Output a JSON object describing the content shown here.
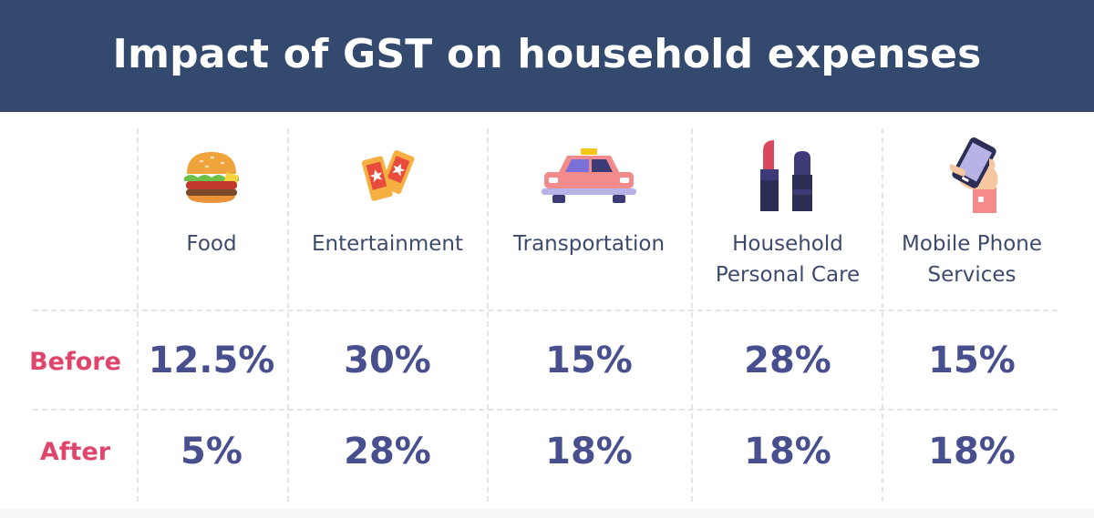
{
  "title": "Impact of GST on household expenses",
  "chart_data": {
    "type": "table",
    "title": "Impact of GST on household expenses",
    "categories": [
      "Food",
      "Entertainment",
      "Transportation",
      "Household Personal Care",
      "Mobile Phone Services"
    ],
    "category_lines": [
      [
        "Food"
      ],
      [
        "Entertainment"
      ],
      [
        "Transportation"
      ],
      [
        "Household",
        "Personal Care"
      ],
      [
        "Mobile Phone",
        "Services"
      ]
    ],
    "icons": [
      "burger-icon",
      "tickets-icon",
      "taxi-icon",
      "lipstick-icon",
      "mobile-phone-icon"
    ],
    "series": [
      {
        "name": "Before",
        "values": [
          12.5,
          30,
          15,
          28,
          15
        ],
        "labels": [
          "12.5%",
          "30%",
          "15%",
          "28%",
          "15%"
        ]
      },
      {
        "name": "After",
        "values": [
          5,
          28,
          18,
          18,
          18
        ],
        "labels": [
          "5%",
          "28%",
          "18%",
          "18%",
          "18%"
        ]
      }
    ],
    "unit": "%"
  },
  "colors": {
    "header_bg": "#334a6e",
    "value_text": "#474f8f",
    "row_label": "#e0456b",
    "category_text": "#3c4a6b"
  }
}
